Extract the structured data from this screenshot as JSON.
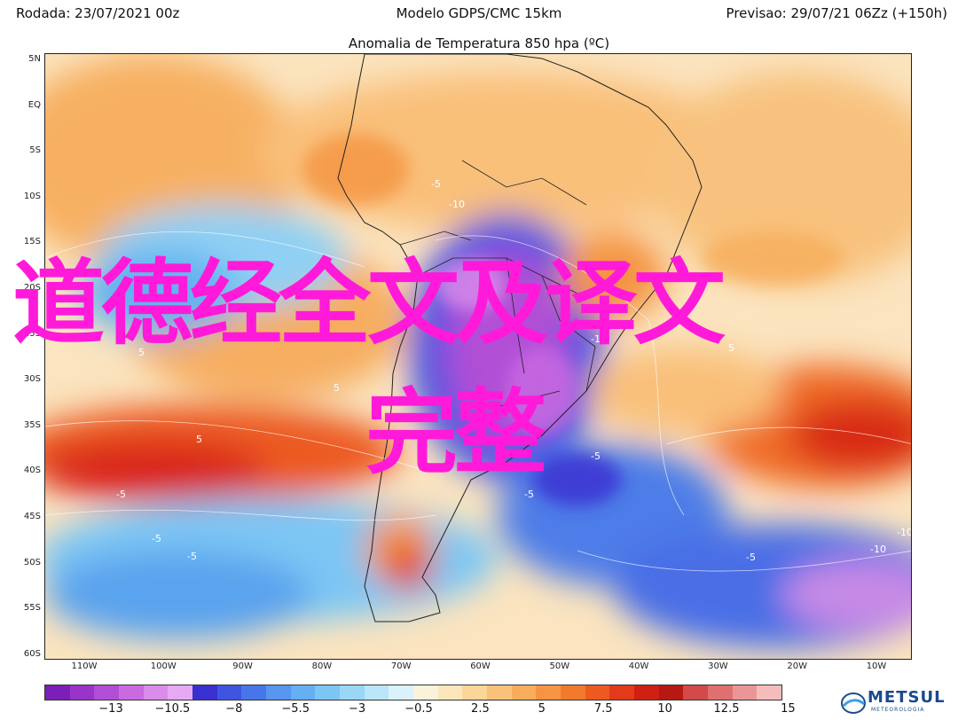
{
  "header": {
    "rodada": "Rodada: 23/07/2021 00z",
    "modelo": "Modelo GDPS/CMC 15km",
    "previsao": "Previsao: 29/07/21 06Zz (+150h)",
    "title": "Anomalia de Temperatura 850 hpa (ºC)"
  },
  "latitude_labels": [
    "5N",
    "EQ",
    "5S",
    "10S",
    "15S",
    "20S",
    "25S",
    "30S",
    "35S",
    "40S",
    "45S",
    "50S",
    "55S",
    "60S"
  ],
  "longitude_labels": [
    "110W",
    "100W",
    "90W",
    "80W",
    "70W",
    "60W",
    "50W",
    "40W",
    "30W",
    "20W",
    "10W"
  ],
  "contour_labels": [
    "-5",
    "-10",
    "-10",
    "-10",
    "5",
    "5",
    "5",
    "-5",
    "-5",
    "-5",
    "-5",
    "5",
    "-10",
    "-10",
    "-5",
    "-5"
  ],
  "overlay": {
    "line1": "道德经全文及译文",
    "line2": "完整"
  },
  "color_scale": {
    "colors": [
      "#7a1fb8",
      "#9a34c8",
      "#b24ed6",
      "#c96ae2",
      "#db8ceb",
      "#e6a9f2",
      "#3a2fd0",
      "#3f55e2",
      "#4876ea",
      "#5795ef",
      "#65b0f2",
      "#7cc6f4",
      "#98d8f6",
      "#b9e6f8",
      "#d9f2fb",
      "#fbf2dc",
      "#fbe6bb",
      "#fbd699",
      "#f9c27a",
      "#f7ad5c",
      "#f59442",
      "#f27a2e",
      "#ec5a22",
      "#e33a1a",
      "#d02014",
      "#b81812",
      "#d44a4a",
      "#e07070",
      "#eb9696",
      "#f5bcbc"
    ],
    "tick_labels": [
      "−13",
      "−10.5",
      "−8",
      "−5.5",
      "−3",
      "−0.5",
      "2.5",
      "5",
      "7.5",
      "10",
      "12.5",
      "15"
    ]
  },
  "logo": {
    "name": "METSUL",
    "sub": "METEOROLOGIA",
    "color": "#1a4a8c"
  },
  "overlay_color": "#ff1ad9"
}
